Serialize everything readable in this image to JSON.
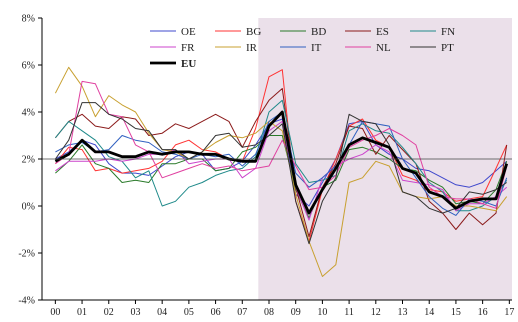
{
  "chart_data": {
    "type": "line",
    "title": "",
    "xlabel": "",
    "ylabel": "",
    "ylim": [
      -4,
      8
    ],
    "xlim": [
      1999.5,
      2017.1
    ],
    "y_ticks": [
      -4,
      -2,
      0,
      2,
      4,
      6,
      8
    ],
    "y_tick_labels": [
      "-4%",
      "-2%",
      "0%",
      "2%",
      "4%",
      "6%",
      "8%"
    ],
    "x_tick_labels": [
      "00",
      "01",
      "02",
      "03",
      "04",
      "05",
      "06",
      "07",
      "08",
      "09",
      "10",
      "11",
      "12",
      "13",
      "14",
      "15",
      "16",
      "17"
    ],
    "x_tick_values": [
      2000,
      2001,
      2002,
      2003,
      2004,
      2005,
      2006,
      2007,
      2008,
      2009,
      2010,
      2011,
      2012,
      2013,
      2014,
      2015,
      2016,
      2017
    ],
    "grid": false,
    "legend_position": "top-right",
    "shaded_region": {
      "x_start": 2007.6,
      "x_end": 2017.1,
      "color": "#ebe0ea"
    },
    "reference_line": {
      "y": 2,
      "color": "#444444"
    },
    "x": [
      2000.0,
      2000.5,
      2001.0,
      2001.5,
      2002.0,
      2002.5,
      2003.0,
      2003.5,
      2004.0,
      2004.5,
      2005.0,
      2005.5,
      2006.0,
      2006.5,
      2007.0,
      2007.5,
      2008.0,
      2008.5,
      2009.0,
      2009.5,
      2010.0,
      2010.5,
      2011.0,
      2011.5,
      2012.0,
      2012.5,
      2013.0,
      2013.5,
      2014.0,
      2014.5,
      2015.0,
      2015.5,
      2016.0,
      2016.5,
      2016.9
    ],
    "series": [
      {
        "name": "OE",
        "color": "#3f48cc",
        "width": 1,
        "values": [
          2.0,
          2.3,
          2.8,
          2.6,
          1.8,
          1.4,
          1.4,
          1.3,
          1.7,
          2.1,
          2.3,
          2.2,
          1.5,
          1.6,
          1.9,
          2.6,
          3.5,
          3.7,
          0.5,
          0.0,
          1.0,
          2.0,
          3.5,
          3.6,
          2.6,
          2.2,
          2.0,
          1.6,
          1.5,
          1.2,
          0.9,
          0.8,
          1.0,
          1.5,
          1.9
        ]
      },
      {
        "name": "BG",
        "color": "#ff3333",
        "width": 1,
        "values": [
          1.8,
          2.5,
          2.4,
          1.5,
          1.6,
          1.4,
          1.5,
          1.6,
          1.9,
          2.6,
          2.8,
          2.4,
          2.3,
          2.0,
          1.9,
          3.3,
          5.5,
          5.8,
          0.2,
          -1.5,
          0.7,
          2.0,
          3.4,
          3.7,
          2.8,
          2.5,
          1.3,
          1.1,
          0.7,
          0.6,
          0.2,
          0.3,
          0.4,
          1.6,
          2.6
        ]
      },
      {
        "name": "BD",
        "color": "#2a7a2a",
        "width": 1,
        "values": [
          1.4,
          1.9,
          2.6,
          1.8,
          1.6,
          1.0,
          1.1,
          1.0,
          1.8,
          1.8,
          2.0,
          2.0,
          1.5,
          1.6,
          2.3,
          2.5,
          3.0,
          3.0,
          0.7,
          -0.5,
          0.8,
          1.1,
          2.4,
          2.5,
          2.3,
          2.0,
          1.6,
          1.5,
          1.1,
          0.8,
          0.1,
          0.2,
          0.1,
          0.7,
          1.9
        ]
      },
      {
        "name": "ES",
        "color": "#8b1a1a",
        "width": 1,
        "values": [
          2.9,
          3.6,
          3.9,
          3.4,
          3.3,
          3.8,
          3.7,
          3.0,
          3.1,
          3.5,
          3.3,
          3.6,
          3.9,
          3.6,
          2.5,
          3.6,
          4.5,
          5.0,
          0.8,
          -1.3,
          0.8,
          1.8,
          3.4,
          3.3,
          2.2,
          3.0,
          2.4,
          1.8,
          0.2,
          -0.3,
          -1.0,
          -0.3,
          -0.8,
          -0.3,
          2.6
        ]
      },
      {
        "name": "FN",
        "color": "#1f8a8a",
        "width": 1,
        "values": [
          2.9,
          3.6,
          3.2,
          2.8,
          2.1,
          1.9,
          1.2,
          1.5,
          0.0,
          0.2,
          0.8,
          1.0,
          1.3,
          1.5,
          1.6,
          2.1,
          4.0,
          4.5,
          1.8,
          1.0,
          1.1,
          1.3,
          3.2,
          3.5,
          3.2,
          3.1,
          2.5,
          1.8,
          1.0,
          0.6,
          -0.2,
          -0.2,
          0.0,
          0.4,
          1.1
        ]
      },
      {
        "name": "FR",
        "color": "#cc44cc",
        "width": 1,
        "values": [
          1.5,
          1.9,
          1.9,
          1.9,
          2.0,
          1.9,
          2.0,
          2.2,
          2.2,
          2.4,
          1.8,
          1.9,
          2.0,
          2.0,
          1.2,
          1.6,
          3.2,
          3.6,
          0.8,
          -0.6,
          1.2,
          1.7,
          2.0,
          2.2,
          2.6,
          2.3,
          1.1,
          1.0,
          0.9,
          0.7,
          -0.2,
          0.1,
          0.1,
          0.4,
          0.8
        ]
      },
      {
        "name": "IR",
        "color": "#c8a030",
        "width": 1,
        "values": [
          4.8,
          5.9,
          5.1,
          3.8,
          4.7,
          4.3,
          4.0,
          3.1,
          2.4,
          2.3,
          2.0,
          2.3,
          2.7,
          3.0,
          2.9,
          3.1,
          3.6,
          3.2,
          0.5,
          -1.5,
          -3.0,
          -2.5,
          1.0,
          1.2,
          1.9,
          1.7,
          0.6,
          0.4,
          0.3,
          0.4,
          0.0,
          0.0,
          -0.1,
          -0.2,
          0.4
        ]
      },
      {
        "name": "IT",
        "color": "#3060c0",
        "width": 1,
        "values": [
          2.3,
          2.6,
          2.7,
          2.3,
          2.4,
          3.0,
          2.8,
          2.7,
          2.3,
          2.2,
          2.0,
          2.2,
          2.1,
          2.2,
          1.7,
          2.2,
          3.6,
          4.0,
          1.4,
          0.8,
          1.2,
          1.7,
          2.6,
          3.6,
          3.5,
          3.4,
          2.0,
          1.2,
          0.4,
          -0.1,
          -0.4,
          0.3,
          0.2,
          0.0,
          1.2
        ]
      },
      {
        "name": "NL",
        "color": "#e040a0",
        "width": 1,
        "values": [
          1.8,
          2.2,
          5.3,
          5.2,
          3.9,
          3.8,
          2.6,
          2.3,
          1.2,
          1.4,
          1.6,
          1.8,
          1.6,
          1.7,
          1.5,
          1.6,
          1.7,
          2.8,
          1.7,
          0.7,
          0.8,
          1.3,
          2.5,
          2.8,
          3.0,
          3.3,
          3.0,
          2.6,
          0.8,
          0.4,
          0.3,
          0.3,
          0.1,
          -0.1,
          1.7
        ]
      },
      {
        "name": "PT",
        "color": "#333333",
        "width": 1,
        "values": [
          2.0,
          2.8,
          4.4,
          4.4,
          3.9,
          3.7,
          3.3,
          3.2,
          2.4,
          2.4,
          2.0,
          2.3,
          3.0,
          3.1,
          2.5,
          2.6,
          3.0,
          3.5,
          0.2,
          -1.6,
          0.2,
          1.2,
          3.9,
          3.6,
          3.5,
          2.6,
          0.6,
          0.4,
          -0.1,
          -0.3,
          -0.1,
          0.6,
          0.5,
          0.7,
          1.0
        ]
      },
      {
        "name": "EU",
        "color": "#000000",
        "width": 2.8,
        "values": [
          1.9,
          2.2,
          2.8,
          2.3,
          2.3,
          2.1,
          2.1,
          2.3,
          2.2,
          2.3,
          2.3,
          2.2,
          2.2,
          2.0,
          1.9,
          1.9,
          3.4,
          4.0,
          0.9,
          -0.3,
          0.7,
          1.6,
          2.6,
          2.9,
          2.7,
          2.5,
          1.6,
          1.4,
          0.6,
          0.4,
          -0.1,
          0.2,
          0.3,
          0.3,
          1.8
        ]
      }
    ]
  }
}
